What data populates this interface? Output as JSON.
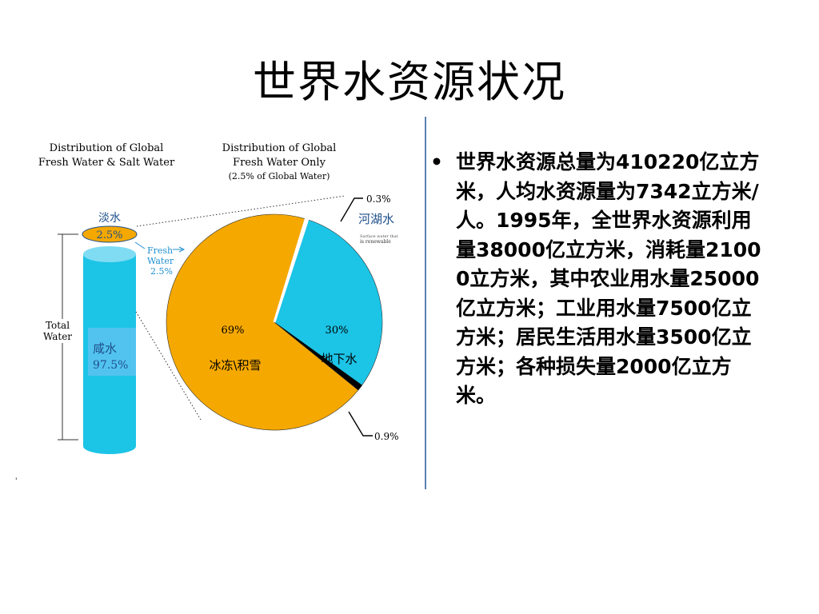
{
  "slide": {
    "title": "世界水资源状况",
    "bullet_symbol": "•",
    "bullet_text": "世界水资源总量为410220亿立方米，人均水资源量为7342立方米/人。1995年，全世界水资源利用量38000亿立方米，消耗量21000立方米，其中农业用水量25000亿立方米；工业用水量7500亿立方米；居民生活用水量3500亿立方米；各种损失量2000亿立方米。",
    "stray_mark": "'"
  },
  "figure": {
    "left_heading_1": "Distribution of Global",
    "left_heading_2": "Fresh Water & Salt Water",
    "right_heading_1": "Distribution of Global",
    "right_heading_2": "Fresh Water Only",
    "right_heading_3": "(2.5% of Global Water)",
    "fresh_label": "淡水",
    "fresh_pct": "2.5%",
    "fresh_en_1": "Fresh",
    "fresh_en_2": "Water",
    "fresh_en_3": "2.5%",
    "total_1": "Total",
    "total_2": "Water",
    "salt_label": "咸水",
    "salt_pct": "97.5%",
    "ice_pct": "69%",
    "ice_label": "冰冻\\积雪",
    "ground_pct": "30%",
    "ground_label": "地下水",
    "lake_pct": "0.3%",
    "lake_label": "河湖水",
    "lake_note_1": "Surface water that",
    "lake_note_2": "is renewable",
    "other_pct": "0.9%"
  },
  "chart_data": {
    "type": "pie",
    "title": "Distribution of Global Fresh Water Only",
    "subtitle": "(2.5% of Global Water)",
    "categories": [
      "冰冻\\积雪",
      "地下水",
      "河湖水",
      ""
    ],
    "values": [
      69,
      30,
      0.3,
      0.9
    ],
    "colors": [
      "#f5a800",
      "#1cc4e6",
      "#ffffff",
      "#000000"
    ],
    "cylinder": {
      "categories": [
        "淡水",
        "咸水"
      ],
      "values": [
        2.5,
        97.5
      ],
      "colors": [
        "#f5a800",
        "#1cc4e6"
      ]
    }
  }
}
